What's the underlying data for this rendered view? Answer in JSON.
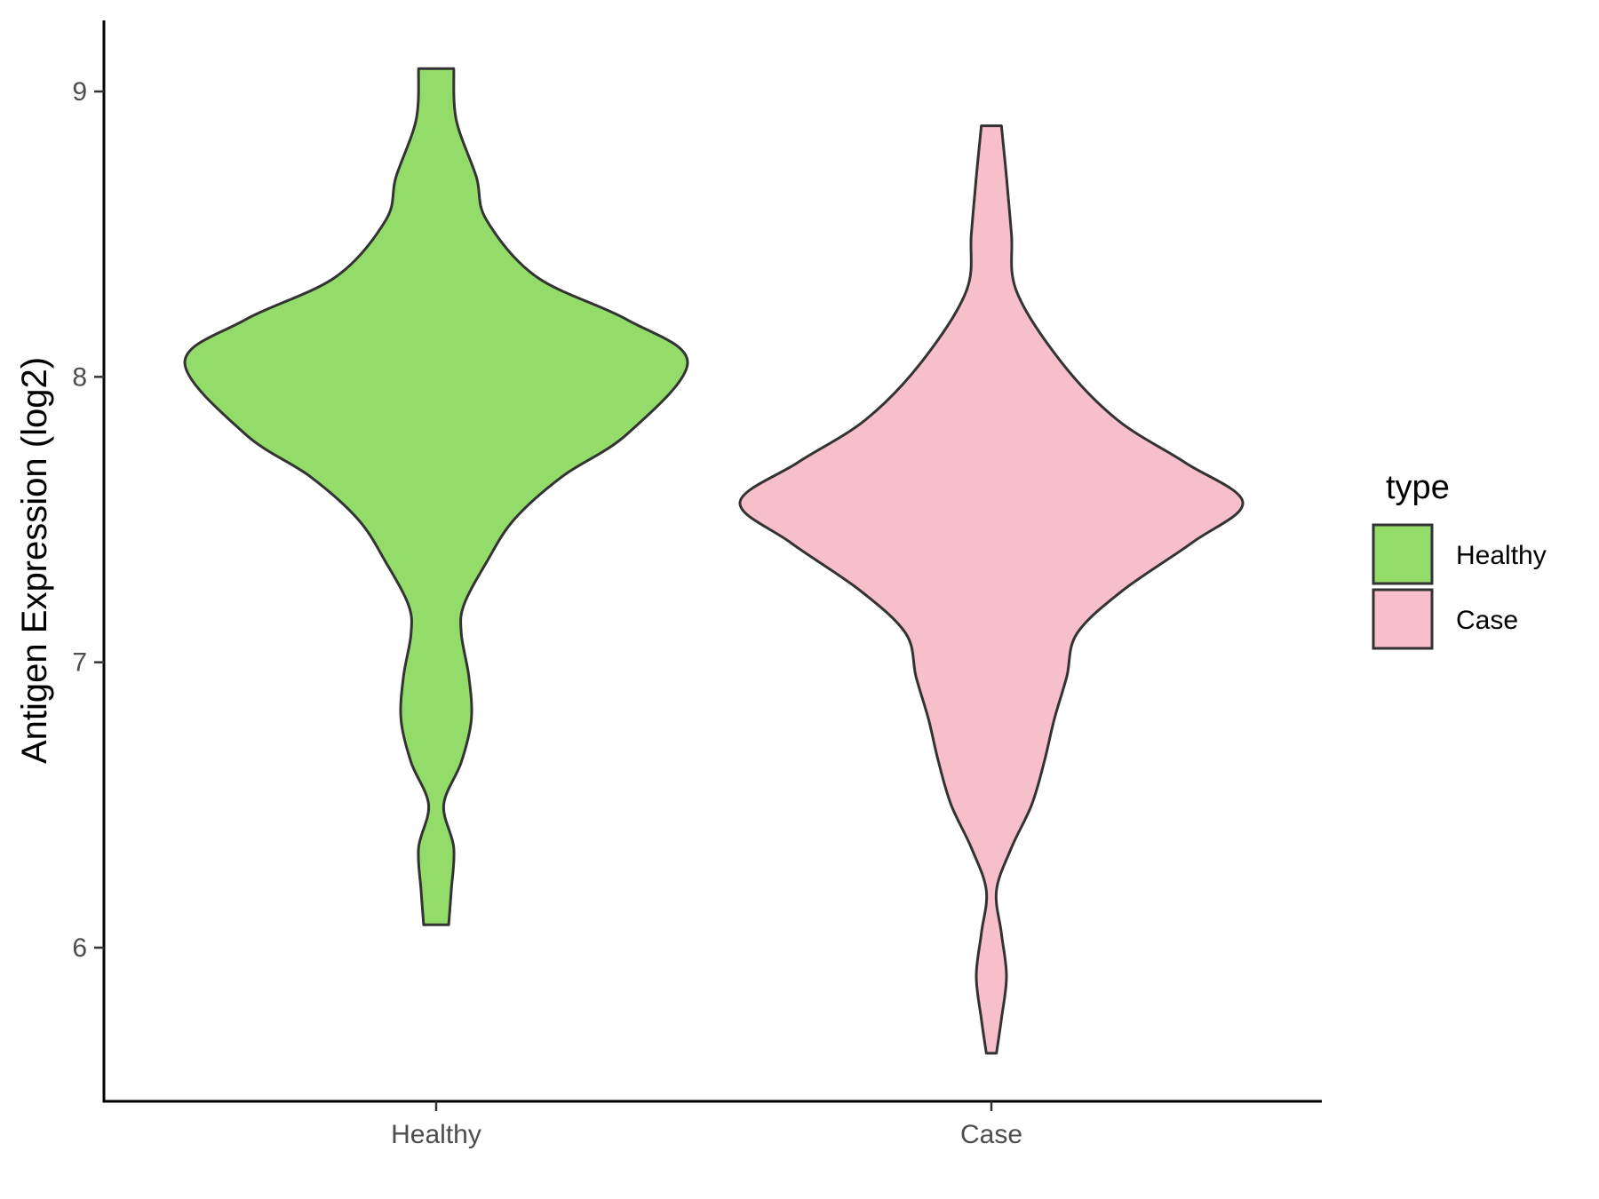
{
  "chart_data": {
    "type": "violin",
    "title": "",
    "xlabel": "",
    "ylabel": "Antigen Expression (log2)",
    "ylim": [
      5.5,
      9.25
    ],
    "yticks": [
      6,
      7,
      8,
      9
    ],
    "categories": [
      "Healthy",
      "Case"
    ],
    "grid": false,
    "legend": {
      "title": "type",
      "position": "right",
      "entries": [
        {
          "label": "Healthy",
          "color": "#93dc6a"
        },
        {
          "label": "Case",
          "color": "#f7bfcb"
        }
      ]
    },
    "series": [
      {
        "category": "Healthy",
        "color": "#93dc6a",
        "min": 6.08,
        "max": 9.08,
        "density_profile": [
          [
            6.08,
            0.025
          ],
          [
            6.2,
            0.03
          ],
          [
            6.35,
            0.035
          ],
          [
            6.5,
            0.015
          ],
          [
            6.65,
            0.05
          ],
          [
            6.8,
            0.07
          ],
          [
            6.95,
            0.065
          ],
          [
            7.1,
            0.05
          ],
          [
            7.2,
            0.055
          ],
          [
            7.35,
            0.1
          ],
          [
            7.5,
            0.155
          ],
          [
            7.65,
            0.25
          ],
          [
            7.8,
            0.38
          ],
          [
            8.05,
            0.5
          ],
          [
            8.2,
            0.38
          ],
          [
            8.35,
            0.2
          ],
          [
            8.55,
            0.1
          ],
          [
            8.7,
            0.08
          ],
          [
            8.9,
            0.04
          ],
          [
            9.08,
            0.035
          ]
        ]
      },
      {
        "category": "Case",
        "color": "#f7bfcb",
        "min": 5.63,
        "max": 8.88,
        "density_profile": [
          [
            5.63,
            0.01
          ],
          [
            5.75,
            0.02
          ],
          [
            5.9,
            0.03
          ],
          [
            6.05,
            0.02
          ],
          [
            6.2,
            0.01
          ],
          [
            6.35,
            0.04
          ],
          [
            6.5,
            0.08
          ],
          [
            6.65,
            0.105
          ],
          [
            6.8,
            0.125
          ],
          [
            6.95,
            0.15
          ],
          [
            7.1,
            0.17
          ],
          [
            7.25,
            0.26
          ],
          [
            7.42,
            0.4
          ],
          [
            7.56,
            0.5
          ],
          [
            7.7,
            0.385
          ],
          [
            7.85,
            0.25
          ],
          [
            8.05,
            0.14
          ],
          [
            8.3,
            0.05
          ],
          [
            8.5,
            0.04
          ],
          [
            8.7,
            0.03
          ],
          [
            8.88,
            0.02
          ]
        ]
      }
    ]
  }
}
